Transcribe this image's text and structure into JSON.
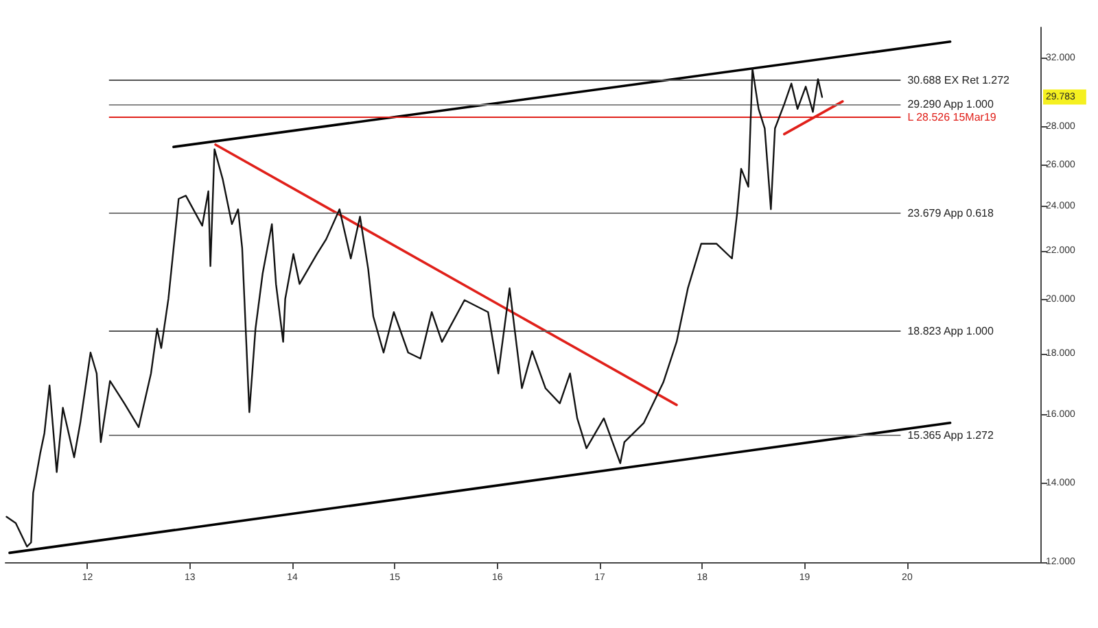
{
  "chart_data": {
    "type": "line",
    "log": "y",
    "grid": false,
    "marker": "none",
    "line_style": "solid",
    "xlim": [
      11.2,
      21.3
    ],
    "xticks": [
      12,
      13,
      14,
      15,
      16,
      17,
      18,
      19,
      20
    ],
    "ylim": [
      12,
      34
    ],
    "yticks": [
      {
        "value": 12,
        "label": "12.000"
      },
      {
        "value": 14,
        "label": "14.000"
      },
      {
        "value": 16,
        "label": "16.000"
      },
      {
        "value": 18,
        "label": "18.000"
      },
      {
        "value": 20,
        "label": "20.000"
      },
      {
        "value": 22,
        "label": "22.000"
      },
      {
        "value": 24,
        "label": "24.000"
      },
      {
        "value": 26,
        "label": "26.000"
      },
      {
        "value": 28,
        "label": "28.000"
      },
      {
        "value": 32,
        "label": "32.000"
      }
    ],
    "series": [
      {
        "color": "#111111",
        "x": [
          11.21,
          11.3,
          11.41,
          11.45,
          11.47,
          11.54,
          11.58,
          11.63,
          11.7,
          11.76,
          11.87,
          11.93,
          12.03,
          12.09,
          12.13,
          12.22,
          12.36,
          12.5,
          12.62,
          12.68,
          12.72,
          12.79,
          12.89,
          12.96,
          13.12,
          13.18,
          13.2,
          13.24,
          13.32,
          13.41,
          13.47,
          13.51,
          13.58,
          13.64,
          13.71,
          13.8,
          13.84,
          13.91,
          13.93,
          14.01,
          14.07,
          14.24,
          14.33,
          14.46,
          14.57,
          14.66,
          14.74,
          14.79,
          14.89,
          14.99,
          15.13,
          15.25,
          15.36,
          15.46,
          15.68,
          15.91,
          16.01,
          16.12,
          16.24,
          16.34,
          16.47,
          16.61,
          16.71,
          16.78,
          16.87,
          17.04,
          17.2,
          17.24,
          17.43,
          17.62,
          17.75,
          17.86,
          17.99,
          18.14,
          18.29,
          18.34,
          18.38,
          18.45,
          18.49,
          18.55,
          18.61,
          18.67,
          18.71,
          18.8,
          18.87,
          18.93,
          19.01,
          19.08,
          19.13,
          19.17
        ],
        "values": [
          13.11,
          12.95,
          12.37,
          12.47,
          13.73,
          14.85,
          15.43,
          16.93,
          14.3,
          16.21,
          14.72,
          15.74,
          18.05,
          17.33,
          15.16,
          17.08,
          16.35,
          15.61,
          17.33,
          18.91,
          18.21,
          20.04,
          24.35,
          24.5,
          23.11,
          24.71,
          21.36,
          26.82,
          25.3,
          23.18,
          23.86,
          22.12,
          16.07,
          18.91,
          21.06,
          23.18,
          20.63,
          18.43,
          20.04,
          21.87,
          20.63,
          21.87,
          22.51,
          23.86,
          21.68,
          23.52,
          21.24,
          19.36,
          18.05,
          19.53,
          18.05,
          17.84,
          19.53,
          18.43,
          19.99,
          19.53,
          17.33,
          20.46,
          16.84,
          18.1,
          16.84,
          16.35,
          17.33,
          15.88,
          14.98,
          15.88,
          14.55,
          15.16,
          15.74,
          17.03,
          18.43,
          20.46,
          22.31,
          22.31,
          21.68,
          23.65,
          25.82,
          24.93,
          31.38,
          29.01,
          27.93,
          23.86,
          27.93,
          29.27,
          30.48,
          29.01,
          30.3,
          28.84,
          30.74,
          29.69
        ]
      },
      {
        "color": "#000000",
        "x": [
          12.84,
          20.42
        ],
        "values": [
          26.94,
          33.07
        ]
      },
      {
        "color": "#000000",
        "x": [
          11.24,
          20.42
        ],
        "values": [
          12.22,
          15.74
        ]
      },
      {
        "color": "#e0201a",
        "x": [
          13.25,
          17.75
        ],
        "values": [
          27.06,
          16.3
        ]
      },
      {
        "color": "#e0201a",
        "x": [
          18.8,
          19.37
        ],
        "values": [
          27.62,
          29.44
        ]
      }
    ],
    "ref_lines": [
      {
        "axis": "y",
        "value": 30.688,
        "label": "30.688 EX Ret 1.272",
        "color": "#555555"
      },
      {
        "axis": "y",
        "value": 29.29,
        "label": "29.290 App 1.000",
        "color": "#888888"
      },
      {
        "axis": "y",
        "value": 28.526,
        "label": "L 28.526 15Mar19",
        "color": "#e0201a"
      },
      {
        "axis": "y",
        "value": 23.679,
        "label": "23.679 App 0.618",
        "color": "#777777"
      },
      {
        "axis": "y",
        "value": 18.823,
        "label": "18.823 App 1.000",
        "color": "#555555"
      },
      {
        "axis": "y",
        "value": 15.365,
        "label": "15.365 App 1.272",
        "color": "#777777"
      }
    ],
    "annotations": [
      "29.783"
    ]
  }
}
